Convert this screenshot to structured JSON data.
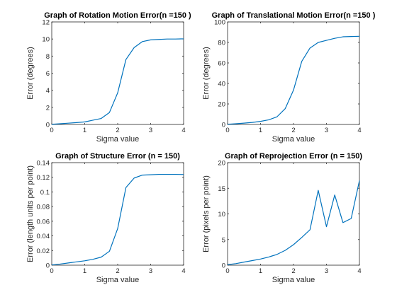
{
  "figure": {
    "background": "#ffffff",
    "line_color": "#0072bd"
  },
  "chart_data": [
    {
      "type": "line",
      "title": "Graph of Rotation Motion Error(n =150 )",
      "xlabel": "Sigma value",
      "ylabel": "Error (degrees)",
      "xlim": [
        0,
        4
      ],
      "ylim": [
        0,
        12
      ],
      "xticks": [
        0,
        1,
        2,
        3,
        4
      ],
      "yticks": [
        0,
        2,
        4,
        6,
        8,
        10,
        12
      ],
      "grid": false,
      "series": [
        {
          "x": [
            0,
            0.25,
            0.5,
            0.75,
            1,
            1.25,
            1.5,
            1.75,
            2,
            2.25,
            2.5,
            2.75,
            3,
            3.25,
            3.5,
            3.75,
            4
          ],
          "y": [
            0.02,
            0.08,
            0.15,
            0.22,
            0.3,
            0.5,
            0.7,
            1.4,
            3.7,
            7.6,
            9.0,
            9.7,
            9.9,
            9.95,
            10.0,
            10.0,
            10.02
          ]
        }
      ]
    },
    {
      "type": "line",
      "title": "Graph of Translational Motion Error(n =150 )",
      "xlabel": "Sigma value",
      "ylabel": "Error (degrees)",
      "xlim": [
        0,
        4
      ],
      "ylim": [
        0,
        100
      ],
      "xticks": [
        0,
        1,
        2,
        3,
        4
      ],
      "yticks": [
        0,
        20,
        40,
        60,
        80,
        100
      ],
      "grid": false,
      "series": [
        {
          "x": [
            0,
            0.25,
            0.5,
            0.75,
            1,
            1.25,
            1.5,
            1.75,
            2,
            2.25,
            2.5,
            2.75,
            3,
            3.25,
            3.5,
            3.75,
            4
          ],
          "y": [
            0.2,
            0.7,
            1.3,
            2.0,
            3.0,
            4.5,
            7.5,
            15.5,
            33.5,
            61.5,
            74.5,
            80.0,
            82.0,
            84.0,
            85.5,
            85.8,
            86.0
          ]
        }
      ]
    },
    {
      "type": "line",
      "title": "Graph of Structure Error (n = 150)",
      "xlabel": "Sigma value",
      "ylabel": "Error (length units per point)",
      "xlim": [
        0,
        4
      ],
      "ylim": [
        0,
        0.14
      ],
      "xticks": [
        0,
        1,
        2,
        3,
        4
      ],
      "yticks": [
        0,
        0.02,
        0.04,
        0.06,
        0.08,
        0.1,
        0.12,
        0.14
      ],
      "grid": false,
      "series": [
        {
          "x": [
            0,
            0.25,
            0.5,
            0.75,
            1,
            1.25,
            1.5,
            1.75,
            2,
            2.25,
            2.5,
            2.75,
            3,
            3.25,
            3.5,
            3.75,
            4
          ],
          "y": [
            0.0003,
            0.0015,
            0.003,
            0.0045,
            0.006,
            0.008,
            0.011,
            0.019,
            0.05,
            0.106,
            0.119,
            0.123,
            0.1235,
            0.124,
            0.124,
            0.124,
            0.1238
          ]
        }
      ]
    },
    {
      "type": "line",
      "title": "Graph of Reprojection Error (n = 150)",
      "xlabel": "Sigma value",
      "ylabel": "Error (pixels per point)",
      "xlim": [
        0,
        4
      ],
      "ylim": [
        0,
        20
      ],
      "xticks": [
        0,
        1,
        2,
        3,
        4
      ],
      "yticks": [
        0,
        5,
        10,
        15,
        20
      ],
      "grid": false,
      "series": [
        {
          "x": [
            0,
            0.25,
            0.5,
            0.75,
            1,
            1.25,
            1.5,
            1.75,
            2,
            2.25,
            2.5,
            2.75,
            3,
            3.25,
            3.5,
            3.75,
            4
          ],
          "y": [
            0.1,
            0.3,
            0.6,
            0.9,
            1.2,
            1.6,
            2.1,
            2.9,
            4.0,
            5.4,
            6.9,
            14.6,
            7.5,
            13.7,
            8.3,
            9.1,
            16.5
          ]
        }
      ]
    }
  ]
}
